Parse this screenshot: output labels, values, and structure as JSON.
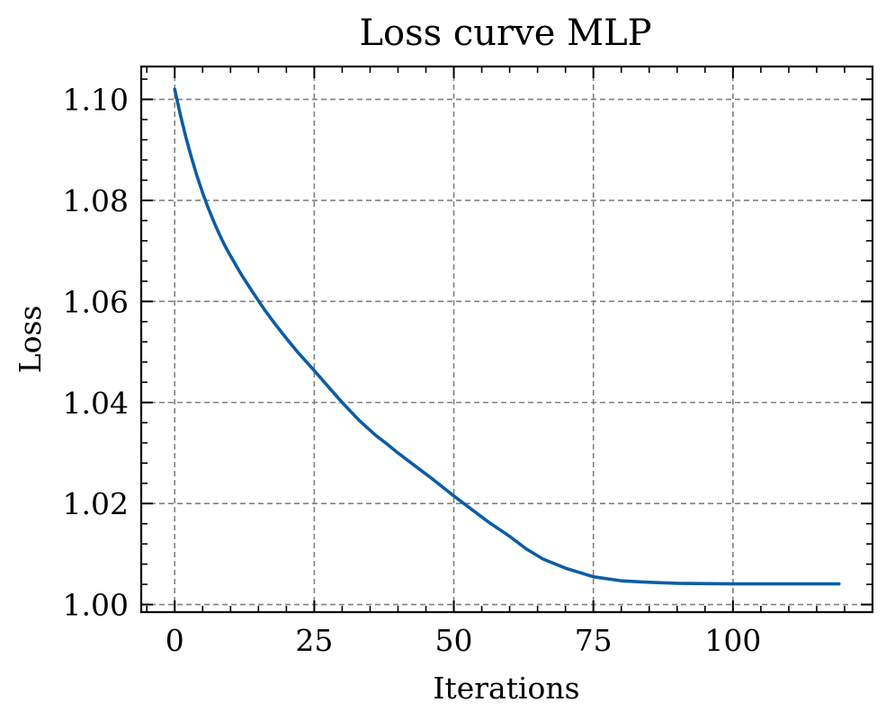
{
  "chart_data": {
    "type": "line",
    "title": "Loss curve MLP",
    "xlabel": "Iterations",
    "ylabel": "Loss",
    "xlim": [
      -6,
      125
    ],
    "ylim": [
      0.9985,
      1.1065
    ],
    "xticks": [
      0,
      25,
      50,
      75,
      100
    ],
    "xtick_labels": [
      "0",
      "25",
      "50",
      "75",
      "100"
    ],
    "yticks": [
      1.0,
      1.02,
      1.04,
      1.06,
      1.08,
      1.1
    ],
    "ytick_labels": [
      "1.00",
      "1.02",
      "1.04",
      "1.06",
      "1.08",
      "1.10"
    ],
    "x_minor_step": 5,
    "y_minor_step": 0.004,
    "grid": true,
    "grid_style": "dashed",
    "colors": {
      "line": "#0C5DA5",
      "grid": "#808080",
      "axes": "#000000"
    },
    "series": [
      {
        "x": [
          0,
          1,
          2,
          3,
          4,
          5,
          6,
          7,
          8,
          9,
          10,
          12,
          14,
          16,
          18,
          20,
          22,
          25,
          28,
          30,
          33,
          36,
          38,
          40,
          43,
          46,
          50,
          53,
          56,
          60,
          63,
          66,
          70,
          75,
          80,
          85,
          90,
          100,
          110,
          119
        ],
        "values": [
          1.102,
          1.097,
          1.0925,
          1.0885,
          1.0848,
          1.0815,
          1.0785,
          1.0758,
          1.0733,
          1.071,
          1.069,
          1.0652,
          1.0618,
          1.0585,
          1.0555,
          1.0527,
          1.05,
          1.0463,
          1.0425,
          1.04,
          1.0365,
          1.0335,
          1.0318,
          1.03,
          1.0275,
          1.025,
          1.0215,
          1.019,
          1.0165,
          1.0135,
          1.011,
          1.009,
          1.0072,
          1.0055,
          1.0047,
          1.0044,
          1.0042,
          1.0041,
          1.0041,
          1.0041
        ]
      }
    ]
  }
}
